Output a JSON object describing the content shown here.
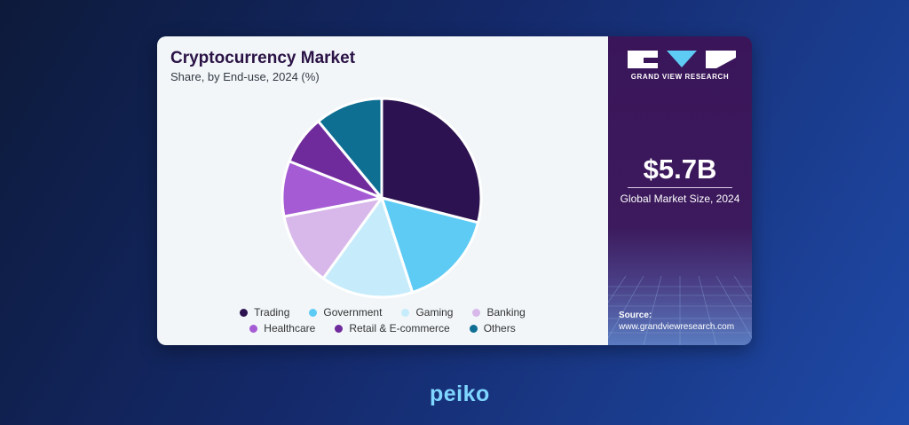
{
  "chart_data": {
    "type": "pie",
    "title": "Cryptocurrency Market",
    "subtitle": "Share, by End-use, 2024 (%)",
    "slices": [
      {
        "label": "Trading",
        "value": 29,
        "color": "#2c1250"
      },
      {
        "label": "Government",
        "value": 16,
        "color": "#5ecbf5"
      },
      {
        "label": "Gaming",
        "value": 15,
        "color": "#c6ecfb"
      },
      {
        "label": "Banking",
        "value": 12,
        "color": "#d8b8ea"
      },
      {
        "label": "Healthcare",
        "value": 9,
        "color": "#a45bd4"
      },
      {
        "label": "Retail & E-commerce",
        "value": 8,
        "color": "#6f2a9c"
      },
      {
        "label": "Others",
        "value": 11,
        "color": "#0e6f93"
      }
    ],
    "legend_position": "bottom"
  },
  "brand": {
    "name": "GRAND VIEW RESEARCH"
  },
  "market": {
    "value": "$5.7B",
    "label": "Global Market Size, 2024"
  },
  "source": {
    "label": "Source:",
    "url": "www.grandviewresearch.com"
  },
  "footer": {
    "logo_text": "peiko"
  }
}
